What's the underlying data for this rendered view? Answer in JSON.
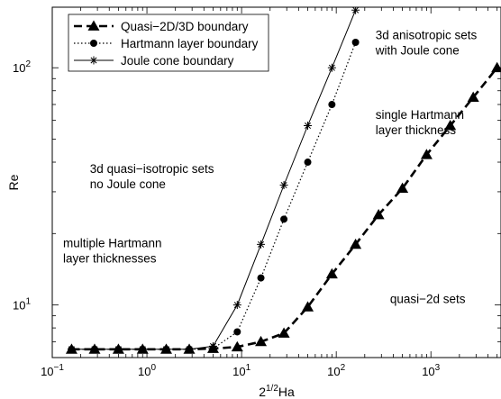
{
  "chart_data": {
    "type": "line",
    "title": "",
    "xlabel": "2^{1/2}Ha",
    "ylabel": "Re",
    "xscale": "log",
    "yscale": "log",
    "xlim": [
      0.1,
      5500
    ],
    "ylim": [
      6.0,
      180
    ],
    "grid": false,
    "legend_position": "top-left",
    "x_ticks": [
      {
        "value": 0.1,
        "base": "10",
        "exp": "−1"
      },
      {
        "value": 1,
        "base": "10",
        "exp": "0"
      },
      {
        "value": 10,
        "base": "10",
        "exp": "1"
      },
      {
        "value": 100,
        "base": "10",
        "exp": "2"
      },
      {
        "value": 1000,
        "base": "10",
        "exp": "3"
      }
    ],
    "y_ticks": [
      {
        "value": 10,
        "base": "10",
        "exp": "1"
      },
      {
        "value": 100,
        "base": "10",
        "exp": "2"
      }
    ],
    "series": [
      {
        "name": "Quasi−2D/3D boundary",
        "line_style": "dashed",
        "marker": "triangle",
        "color": "#000000",
        "x": [
          0.16,
          0.28,
          0.5,
          0.9,
          1.6,
          2.8,
          5.0,
          9.0,
          16,
          28,
          50,
          90,
          160,
          280,
          500,
          900,
          1600,
          2800,
          5000
        ],
        "y": [
          6.5,
          6.5,
          6.5,
          6.5,
          6.5,
          6.5,
          6.55,
          6.65,
          7.0,
          7.6,
          9.8,
          13.5,
          18,
          24,
          31,
          43,
          57,
          75,
          100
        ]
      },
      {
        "name": "Hartmann layer boundary",
        "line_style": "dotted",
        "marker": "circle",
        "color": "#000000",
        "x": [
          0.16,
          0.28,
          0.5,
          0.9,
          1.6,
          2.8,
          5.0,
          9.0,
          16,
          28,
          50,
          90,
          160
        ],
        "y": [
          6.5,
          6.5,
          6.5,
          6.5,
          6.5,
          6.5,
          6.55,
          7.7,
          13,
          23,
          40,
          70,
          128
        ]
      },
      {
        "name": "Joule cone boundary",
        "line_style": "solid",
        "marker": "star",
        "color": "#000000",
        "x": [
          0.16,
          0.28,
          0.5,
          0.9,
          1.6,
          2.8,
          5.0,
          9.0,
          16,
          28,
          50,
          90,
          160
        ],
        "y": [
          6.5,
          6.5,
          6.5,
          6.5,
          6.5,
          6.5,
          6.7,
          10,
          18,
          32,
          57,
          100,
          175
        ]
      }
    ],
    "annotations": [
      {
        "lines": [
          "3d quasi−isotropic sets",
          "no Joule cone"
        ],
        "x": 0.25,
        "y": 36
      },
      {
        "lines": [
          "multiple Hartmann",
          "layer thicknesses"
        ],
        "x": 0.13,
        "y": 17.5
      },
      {
        "lines": [
          "3d anisotropic sets",
          "with Joule cone"
        ],
        "x": 260,
        "y": 132
      },
      {
        "lines": [
          "single Hartmann",
          "layer thickness"
        ],
        "x": 260,
        "y": 61
      },
      {
        "lines": [
          "quasi−2d sets"
        ],
        "x": 370,
        "y": 10.2
      }
    ]
  }
}
